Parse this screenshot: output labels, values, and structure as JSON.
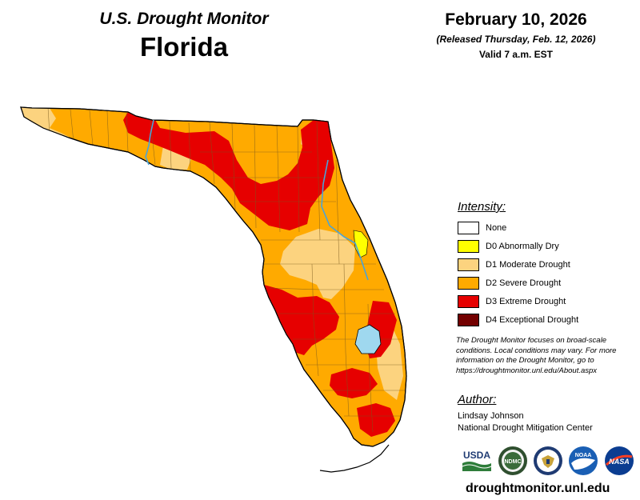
{
  "header": {
    "title": "U.S. Drought Monitor",
    "state": "Florida",
    "date": "February 10, 2026",
    "released": "(Released Thursday, Feb. 12, 2026)",
    "valid": "Valid 7 a.m. EST"
  },
  "legend": {
    "title": "Intensity:",
    "items": [
      {
        "label": "None",
        "color": "#ffffff"
      },
      {
        "label": "D0 Abnormally Dry",
        "color": "#ffff00"
      },
      {
        "label": "D1 Moderate Drought",
        "color": "#fcd37f"
      },
      {
        "label": "D2 Severe Drought",
        "color": "#ffaa00"
      },
      {
        "label": "D3 Extreme Drought",
        "color": "#e60000"
      },
      {
        "label": "D4 Exceptional Drought",
        "color": "#730000"
      }
    ]
  },
  "note": "The Drought Monitor focuses on broad-scale conditions. Local conditions may vary. For more information on the Drought Monitor, go to https://droughtmonitor.unl.edu/About.aspx",
  "author": {
    "title": "Author:",
    "name": "Lindsay Johnson",
    "organization": "National Drought Mitigation Center"
  },
  "logos": {
    "usda": "USDA",
    "ndmc": "NDMC",
    "noaa": "NOAA",
    "nasa": "NASA",
    "commerce_icon": "eagle-seal-icon"
  },
  "footer": {
    "url": "droughtmonitor.unl.edu"
  },
  "map_colors": {
    "d0": "#ffff00",
    "d1": "#fcd37f",
    "d2": "#ffaa00",
    "d3": "#e60000",
    "water": "#9fd8ef",
    "river": "#4aa3d8",
    "county": "#7a5a1e"
  }
}
